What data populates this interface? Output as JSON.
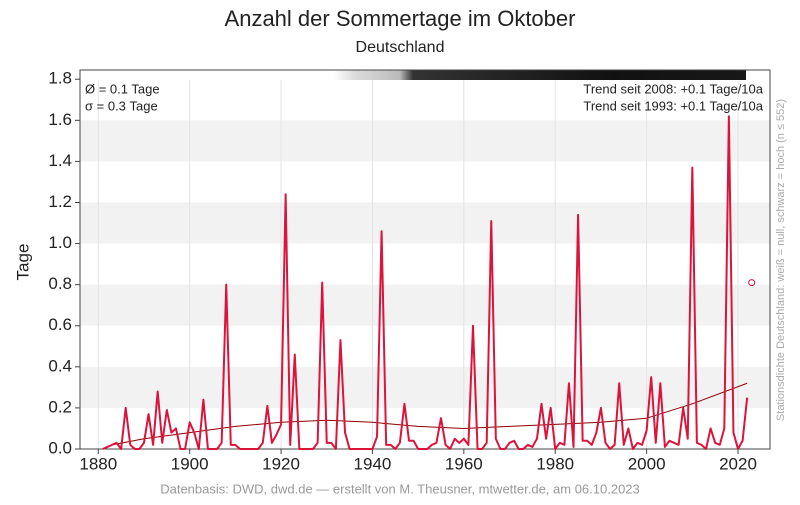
{
  "chart_data": {
    "type": "line",
    "title": "Anzahl der Sommertage im Oktober",
    "subtitle": "Deutschland",
    "ylabel": "Tage",
    "annotations": [
      "Ø = 0.1 Tage",
      "σ = 0.3 Tage",
      "Trend seit 2008: +0.1 Tage/10a",
      "Trend seit 1993: +0.1 Tage/10a"
    ],
    "side_note": "Stationsdichte Deutschland: weiß = null, schwarz = hoch (n ≤ 552)",
    "footer": "Datenbasis: DWD, dwd.de — erstellt von M. Theusner, mtwetter.de, am 06.10.2023",
    "xlim": [
      1876,
      2027
    ],
    "ylim": [
      0,
      1.845
    ],
    "xticks": [
      1880,
      1900,
      1920,
      1940,
      1960,
      1980,
      2000,
      2020
    ],
    "yticks": [
      {
        "value": 0,
        "label": "0.0"
      },
      0.2,
      0.4,
      0.6,
      0.8,
      {
        "value": 1,
        "label": "1.0"
      },
      1.2,
      1.4,
      1.6,
      1.8
    ],
    "grid": true,
    "series": [
      {
        "color": "#dc143c",
        "x": [
          1881,
          1882,
          1883,
          1884,
          1885,
          1886,
          1887,
          1888,
          1889,
          1890,
          1891,
          1892,
          1893,
          1894,
          1895,
          1896,
          1897,
          1898,
          1899,
          1900,
          1901,
          1902,
          1903,
          1904,
          1905,
          1906,
          1907,
          1908,
          1909,
          1910,
          1911,
          1912,
          1913,
          1914,
          1915,
          1916,
          1917,
          1918,
          1919,
          1920,
          1921,
          1922,
          1923,
          1924,
          1925,
          1926,
          1927,
          1928,
          1929,
          1930,
          1931,
          1932,
          1933,
          1934,
          1935,
          1936,
          1937,
          1938,
          1939,
          1940,
          1941,
          1942,
          1943,
          1944,
          1945,
          1946,
          1947,
          1948,
          1949,
          1950,
          1951,
          1952,
          1953,
          1954,
          1955,
          1956,
          1957,
          1958,
          1959,
          1960,
          1961,
          1962,
          1963,
          1964,
          1965,
          1966,
          1967,
          1968,
          1969,
          1970,
          1971,
          1972,
          1973,
          1974,
          1975,
          1976,
          1977,
          1978,
          1979,
          1980,
          1981,
          1982,
          1983,
          1984,
          1985,
          1986,
          1987,
          1988,
          1989,
          1990,
          1991,
          1992,
          1993,
          1994,
          1995,
          1996,
          1997,
          1998,
          1999,
          2000,
          2001,
          2002,
          2003,
          2004,
          2005,
          2006,
          2007,
          2008,
          2009,
          2010,
          2011,
          2012,
          2013,
          2014,
          2015,
          2016,
          2017,
          2018,
          2019,
          2020,
          2021,
          2022
        ],
        "values": [
          0,
          0.01,
          0.02,
          0.03,
          0,
          0.2,
          0.02,
          0,
          0,
          0.03,
          0.17,
          0.02,
          0.28,
          0.03,
          0.19,
          0.08,
          0.1,
          0,
          0,
          0.13,
          0.08,
          0,
          0.24,
          0,
          0,
          0,
          0.03,
          0.8,
          0.02,
          0.02,
          0,
          0,
          0,
          0,
          0,
          0.03,
          0.21,
          0.03,
          0.07,
          0.12,
          1.24,
          0.02,
          0.46,
          0,
          0,
          0,
          0,
          0.03,
          0.81,
          0.03,
          0.03,
          0,
          0.53,
          0.08,
          0,
          0,
          0,
          0,
          0,
          0,
          0.06,
          1.06,
          0.02,
          0.02,
          0,
          0.03,
          0.22,
          0.04,
          0.04,
          0,
          0,
          0,
          0.02,
          0.03,
          0.15,
          0.02,
          0,
          0.05,
          0.03,
          0.05,
          0.02,
          0.6,
          0,
          0,
          0.03,
          1.11,
          0.05,
          0,
          0,
          0.03,
          0.04,
          0,
          0,
          0.02,
          0.01,
          0.05,
          0.22,
          0.05,
          0.2,
          0,
          0.03,
          0.02,
          0.32,
          0.01,
          1.14,
          0.04,
          0.04,
          0.02,
          0.08,
          0.2,
          0.03,
          0,
          0.02,
          0.32,
          0.02,
          0.1,
          0,
          0.03,
          0.02,
          0.09,
          0.35,
          0.03,
          0.32,
          0.01,
          0.04,
          0.03,
          0.02,
          0.2,
          0.05,
          1.37,
          0.03,
          0.02,
          0,
          0.1,
          0.03,
          0.02,
          0.1,
          1.62,
          0.08,
          0,
          0.04,
          0.25
        ]
      }
    ],
    "trend": {
      "color": "#8b0000",
      "x": [
        1883,
        1890,
        1900,
        1910,
        1920,
        1930,
        1940,
        1950,
        1960,
        1970,
        1980,
        1990,
        2000,
        2010,
        2022
      ],
      "values": [
        0.02,
        0.05,
        0.08,
        0.11,
        0.13,
        0.14,
        0.13,
        0.11,
        0.1,
        0.11,
        0.12,
        0.13,
        0.15,
        0.22,
        0.32
      ]
    },
    "current": {
      "x": 2023,
      "value": 0.81,
      "color": "#dc143c"
    }
  }
}
